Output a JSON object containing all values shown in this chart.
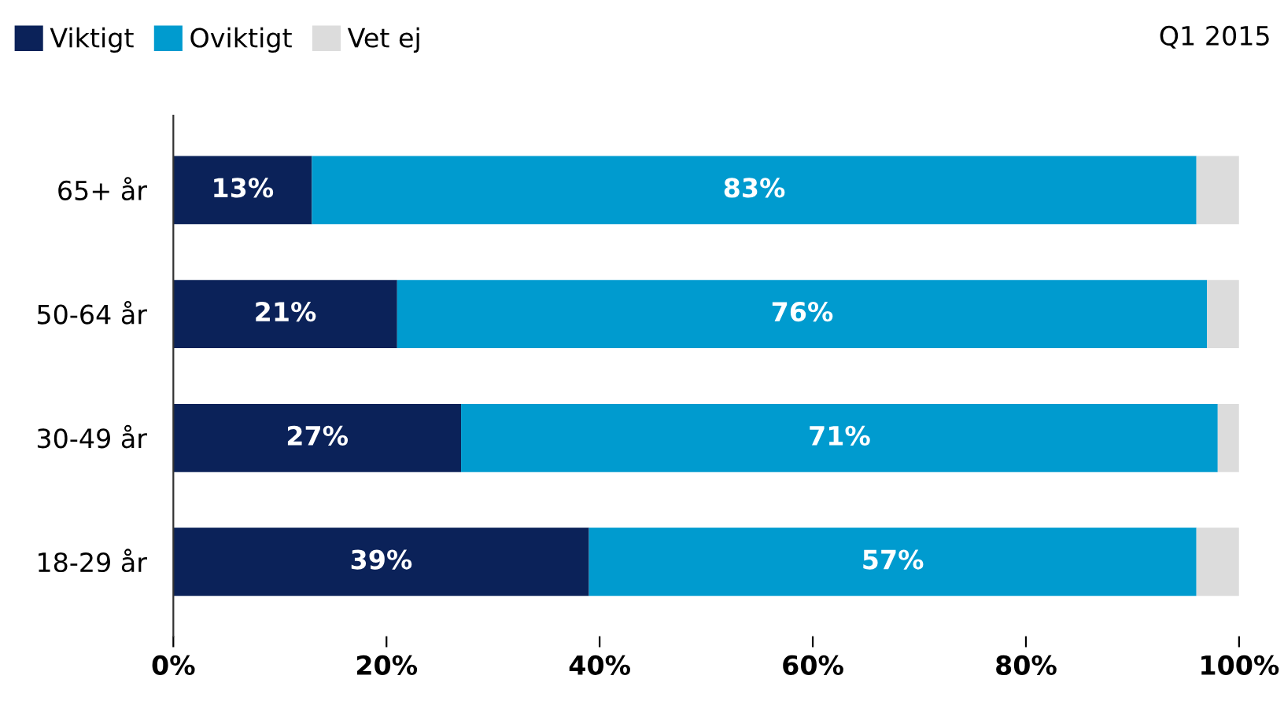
{
  "chart_data": {
    "type": "bar",
    "orientation": "horizontal",
    "stacked": true,
    "subtitle": "Q1 2015",
    "categories": [
      "65+ år",
      "50-64 år",
      "30-49 år",
      "18-29 år"
    ],
    "series": [
      {
        "name": "Viktigt",
        "color": "#0b2259",
        "values": [
          13,
          21,
          27,
          39
        ],
        "value_labels": [
          "13%",
          "21%",
          "27%",
          "39%"
        ]
      },
      {
        "name": "Oviktigt",
        "color": "#009bcf",
        "values": [
          83,
          76,
          71,
          57
        ],
        "value_labels": [
          "83%",
          "76%",
          "71%",
          "57%"
        ]
      },
      {
        "name": "Vet ej",
        "color": "#dcdcdc",
        "values": [
          4,
          3,
          2,
          4
        ]
      }
    ],
    "xlim": [
      0,
      100
    ],
    "xticks": [
      {
        "value": 0,
        "label": "0%"
      },
      {
        "value": 20,
        "label": "20%"
      },
      {
        "value": 40,
        "label": "40%"
      },
      {
        "value": 60,
        "label": "60%"
      },
      {
        "value": 80,
        "label": "80%"
      },
      {
        "value": 100,
        "label": "100%"
      }
    ],
    "legend": "top left",
    "grid": false
  }
}
